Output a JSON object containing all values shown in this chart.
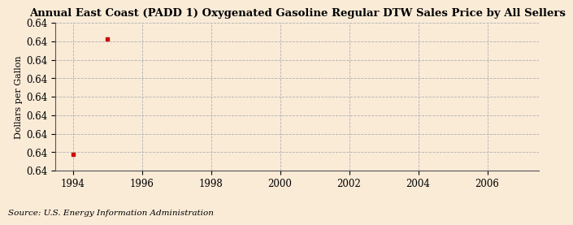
{
  "title": "Annual East Coast (PADD 1) Oxygenated Gasoline Regular DTW Sales Price by All Sellers",
  "ylabel": "Dollars per Gallon",
  "source": "Source: U.S. Energy Information Administration",
  "background_color": "#faebd7",
  "data_points": {
    "x": [
      1994,
      1995
    ],
    "y": [
      1,
      8
    ]
  },
  "xlim": [
    1993.5,
    2007.5
  ],
  "ylim": [
    0,
    9
  ],
  "n_yticks": 9,
  "xtick_values": [
    1994,
    1996,
    1998,
    2000,
    2002,
    2004,
    2006
  ],
  "marker_color": "#cc0000",
  "grid_color": "#b0b0b0",
  "title_fontsize": 9.5,
  "label_fontsize": 8,
  "tick_fontsize": 8.5,
  "source_fontsize": 7.5
}
